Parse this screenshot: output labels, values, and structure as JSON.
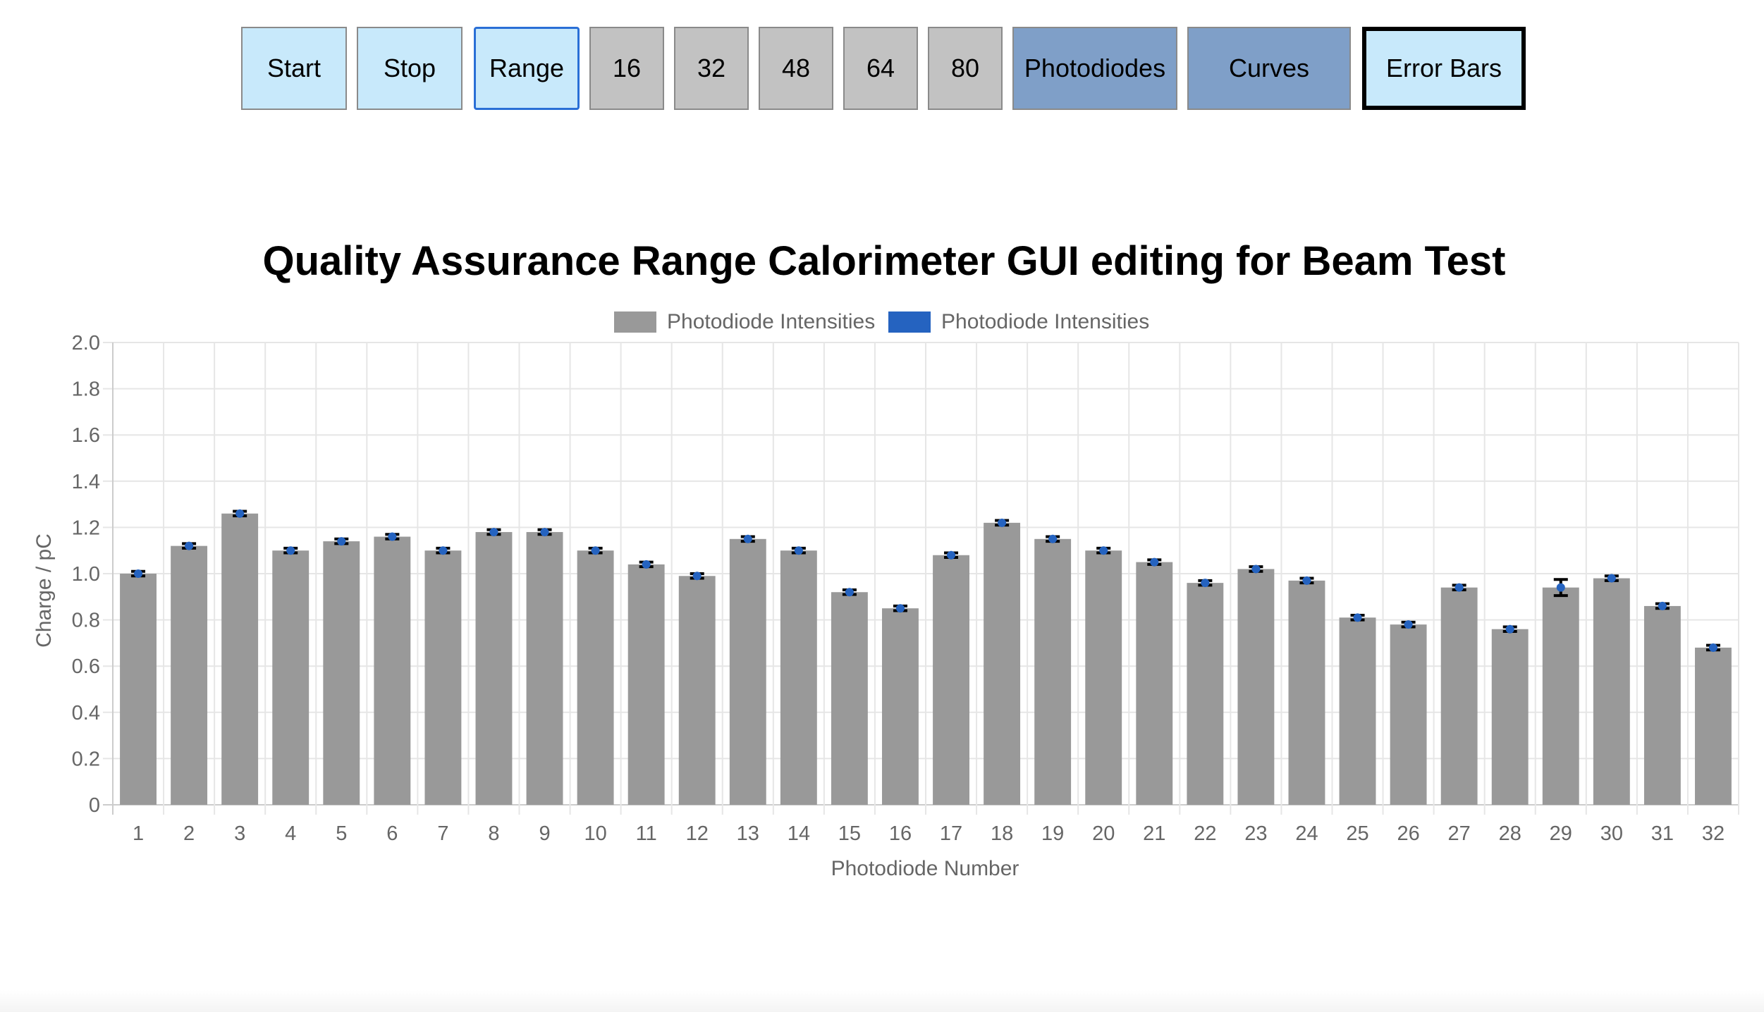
{
  "toolbar": {
    "buttons": [
      {
        "label": "Start"
      },
      {
        "label": "Stop"
      },
      {
        "label": "Range"
      },
      {
        "label": "16"
      },
      {
        "label": "32"
      },
      {
        "label": "48"
      },
      {
        "label": "64"
      },
      {
        "label": "80"
      },
      {
        "label": "Photodiodes"
      },
      {
        "label": "Curves"
      },
      {
        "label": "Error Bars"
      }
    ]
  },
  "colors": {
    "button_light": "#c8e9fb",
    "button_gray": "#c2c2c2",
    "button_steel": "#7f9fc8",
    "bar_gray": "#999999",
    "series_blue": "#2563c0",
    "error_bar": "#000000",
    "grid": "#e6e6e6",
    "axis_text": "#666666"
  },
  "chart_data": {
    "type": "bar",
    "title": "Quality Assurance Range Calorimeter GUI editing for Beam Test",
    "xlabel": "Photodiode Number",
    "ylabel": "Charge / pC",
    "ylim": [
      0,
      2.0
    ],
    "yticks": [
      "0",
      "0.2",
      "0.4",
      "0.6",
      "0.8",
      "1.0",
      "1.2",
      "1.4",
      "1.6",
      "1.8",
      "2.0"
    ],
    "grid": true,
    "legend_position": "top-center",
    "categories": [
      "1",
      "2",
      "3",
      "4",
      "5",
      "6",
      "7",
      "8",
      "9",
      "10",
      "11",
      "12",
      "13",
      "14",
      "15",
      "16",
      "17",
      "18",
      "19",
      "20",
      "21",
      "22",
      "23",
      "24",
      "25",
      "26",
      "27",
      "28",
      "29",
      "30",
      "31",
      "32"
    ],
    "series": [
      {
        "name": "Photodiode Intensities",
        "kind": "bar",
        "color": "#999999",
        "values": [
          1.0,
          1.12,
          1.26,
          1.1,
          1.14,
          1.16,
          1.1,
          1.18,
          1.18,
          1.1,
          1.04,
          0.99,
          1.15,
          1.1,
          0.92,
          0.85,
          1.08,
          1.22,
          1.15,
          1.1,
          1.05,
          0.96,
          1.02,
          0.97,
          0.81,
          0.78,
          0.94,
          0.76,
          0.94,
          0.98,
          0.86,
          0.68
        ]
      },
      {
        "name": "Photodiode Intensities",
        "kind": "error-point",
        "color": "#2563c0",
        "values": [
          1.0,
          1.12,
          1.26,
          1.1,
          1.14,
          1.16,
          1.1,
          1.18,
          1.18,
          1.1,
          1.04,
          0.99,
          1.15,
          1.1,
          0.92,
          0.85,
          1.08,
          1.22,
          1.15,
          1.1,
          1.05,
          0.96,
          1.02,
          0.97,
          0.81,
          0.78,
          0.94,
          0.76,
          0.94,
          0.98,
          0.86,
          0.68
        ],
        "errors": [
          0.01,
          0.01,
          0.01,
          0.01,
          0.01,
          0.01,
          0.01,
          0.01,
          0.01,
          0.01,
          0.01,
          0.01,
          0.01,
          0.01,
          0.01,
          0.01,
          0.01,
          0.01,
          0.01,
          0.01,
          0.01,
          0.01,
          0.01,
          0.01,
          0.01,
          0.01,
          0.01,
          0.01,
          0.035,
          0.01,
          0.01,
          0.01
        ]
      }
    ]
  }
}
